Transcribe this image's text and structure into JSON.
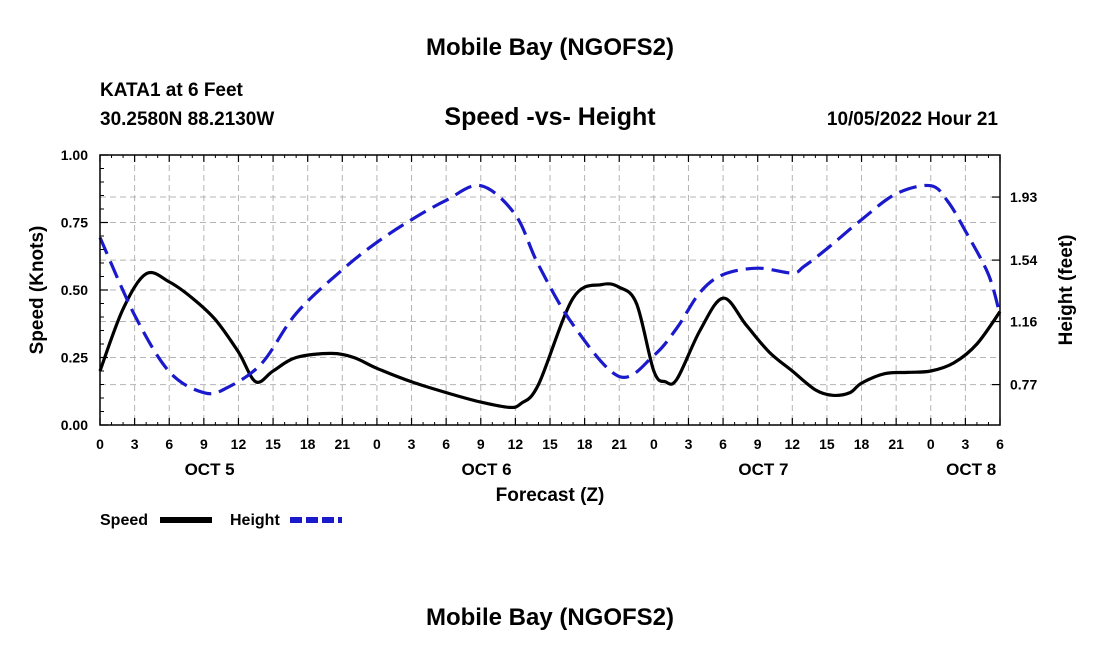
{
  "header": {
    "title": "Mobile Bay (NGOFS2)",
    "station": "KATA1 at 6 Feet",
    "coords": "30.2580N  88.2130W",
    "subtitle": "Speed -vs- Height",
    "datetime": "10/05/2022 Hour 21"
  },
  "footer": {
    "title": "Mobile Bay (NGOFS2)"
  },
  "colors": {
    "speed": "#000000",
    "height": "#1a1acc",
    "grid": "#b4b4b4"
  },
  "chart_data": {
    "type": "line",
    "xlabel": "Forecast (Z)",
    "ylabel_left": "Speed (Knots)",
    "ylabel_right": "Height (feet)",
    "x_range_hours": [
      0,
      78
    ],
    "hour_tick_labels": [
      "0",
      "3",
      "6",
      "9",
      "12",
      "15",
      "18",
      "21",
      "0",
      "3",
      "6",
      "9",
      "12",
      "15",
      "18",
      "21",
      "0",
      "3",
      "6",
      "9",
      "12",
      "15",
      "18",
      "21",
      "0",
      "3",
      "6"
    ],
    "day_labels": [
      {
        "label": "OCT 5",
        "hour": 9.5
      },
      {
        "label": "OCT 6",
        "hour": 33.5
      },
      {
        "label": "OCT 7",
        "hour": 57.5
      },
      {
        "label": "OCT 8",
        "hour": 75.5
      }
    ],
    "y_left": {
      "range": [
        0,
        1
      ],
      "ticks": [
        0,
        0.25,
        0.5,
        0.75,
        1.0
      ],
      "tick_labels": [
        "0.00",
        "0.25",
        "0.50",
        "0.75",
        "1.00"
      ]
    },
    "y_right": {
      "range": [
        0.52,
        2.19
      ],
      "ticks": [
        0.77,
        1.16,
        1.54,
        1.93
      ],
      "tick_labels": [
        "0.77",
        "1.16",
        "1.54",
        "1.93"
      ]
    },
    "series": [
      {
        "name": "Speed",
        "axis": "left",
        "style": "solid",
        "x": [
          0,
          2,
          4,
          6,
          8,
          10,
          12,
          13.5,
          15,
          17,
          20,
          22,
          24,
          27,
          30,
          33,
          35.5,
          36.5,
          38,
          41,
          43.5,
          45,
          46.5,
          48,
          49,
          50,
          52,
          54,
          56,
          58,
          60,
          62,
          63.5,
          65,
          66,
          68,
          70,
          72,
          74,
          76,
          78
        ],
        "y": [
          0.2,
          0.43,
          0.56,
          0.53,
          0.47,
          0.39,
          0.27,
          0.16,
          0.2,
          0.25,
          0.265,
          0.25,
          0.21,
          0.16,
          0.12,
          0.085,
          0.065,
          0.08,
          0.15,
          0.47,
          0.52,
          0.51,
          0.45,
          0.2,
          0.16,
          0.17,
          0.35,
          0.47,
          0.37,
          0.27,
          0.2,
          0.13,
          0.11,
          0.12,
          0.155,
          0.19,
          0.195,
          0.2,
          0.23,
          0.3,
          0.42
        ]
      },
      {
        "name": "Height",
        "axis": "right",
        "style": "dashed",
        "x": [
          0,
          3,
          6,
          9,
          11,
          14,
          17,
          21,
          24,
          27,
          30,
          33,
          36,
          38,
          41,
          45,
          48,
          50,
          52,
          54,
          57,
          60,
          61,
          63,
          66,
          69,
          72,
          73.5,
          75,
          77,
          78
        ],
        "y": [
          1.68,
          1.2,
          0.85,
          0.72,
          0.75,
          0.9,
          1.21,
          1.48,
          1.65,
          1.79,
          1.91,
          2.0,
          1.82,
          1.51,
          1.14,
          0.82,
          0.95,
          1.12,
          1.34,
          1.45,
          1.49,
          1.46,
          1.5,
          1.61,
          1.79,
          1.95,
          2.0,
          1.9,
          1.72,
          1.45,
          1.2
        ]
      }
    ],
    "legend": {
      "position": "bottom-left",
      "entries": [
        "Speed",
        "Height"
      ]
    }
  }
}
